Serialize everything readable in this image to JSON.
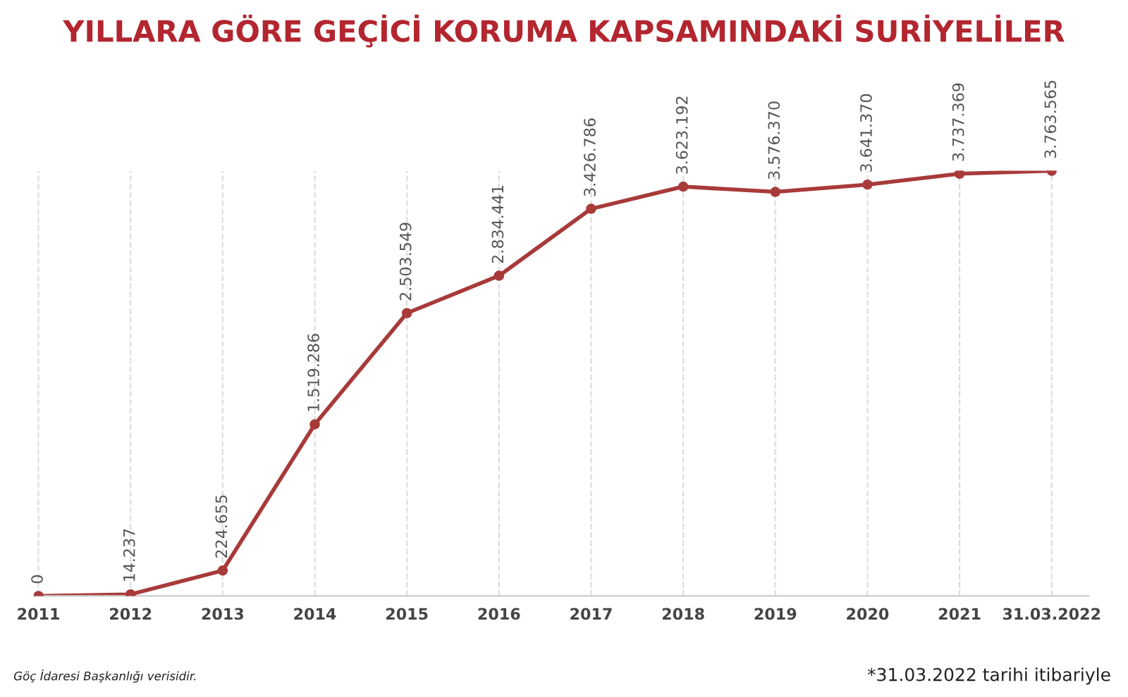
{
  "chart_data": {
    "type": "line",
    "title": "YILLARA GÖRE GEÇİCİ KORUMA KAPSAMINDAKİ SURİYELİLER",
    "categories": [
      "2011",
      "2012",
      "2013",
      "2014",
      "2015",
      "2016",
      "2017",
      "2018",
      "2019",
      "2020",
      "2021",
      "31.03.2022"
    ],
    "series": [
      {
        "color": "#a83a3a",
        "values": [
          0,
          14237,
          224655,
          1519286,
          2503549,
          2834441,
          3426786,
          3623192,
          3576370,
          3641370,
          3737369,
          3763565
        ],
        "value_labels": [
          "0",
          "14.237",
          "224.655",
          "1.519.286",
          "2.503.549",
          "2.834.441",
          "3.426.786",
          "3.623.192",
          "3.576.370",
          "3.641.370",
          "3.737.369",
          "3.763.565"
        ]
      }
    ],
    "marker": "circle",
    "line_style": "solid",
    "grid": "x",
    "legend": false,
    "annotations": [
      "Göç İdaresi Başkanlığı verisidir.",
      "*31.03.2022 tarihi itibariyle"
    ]
  }
}
